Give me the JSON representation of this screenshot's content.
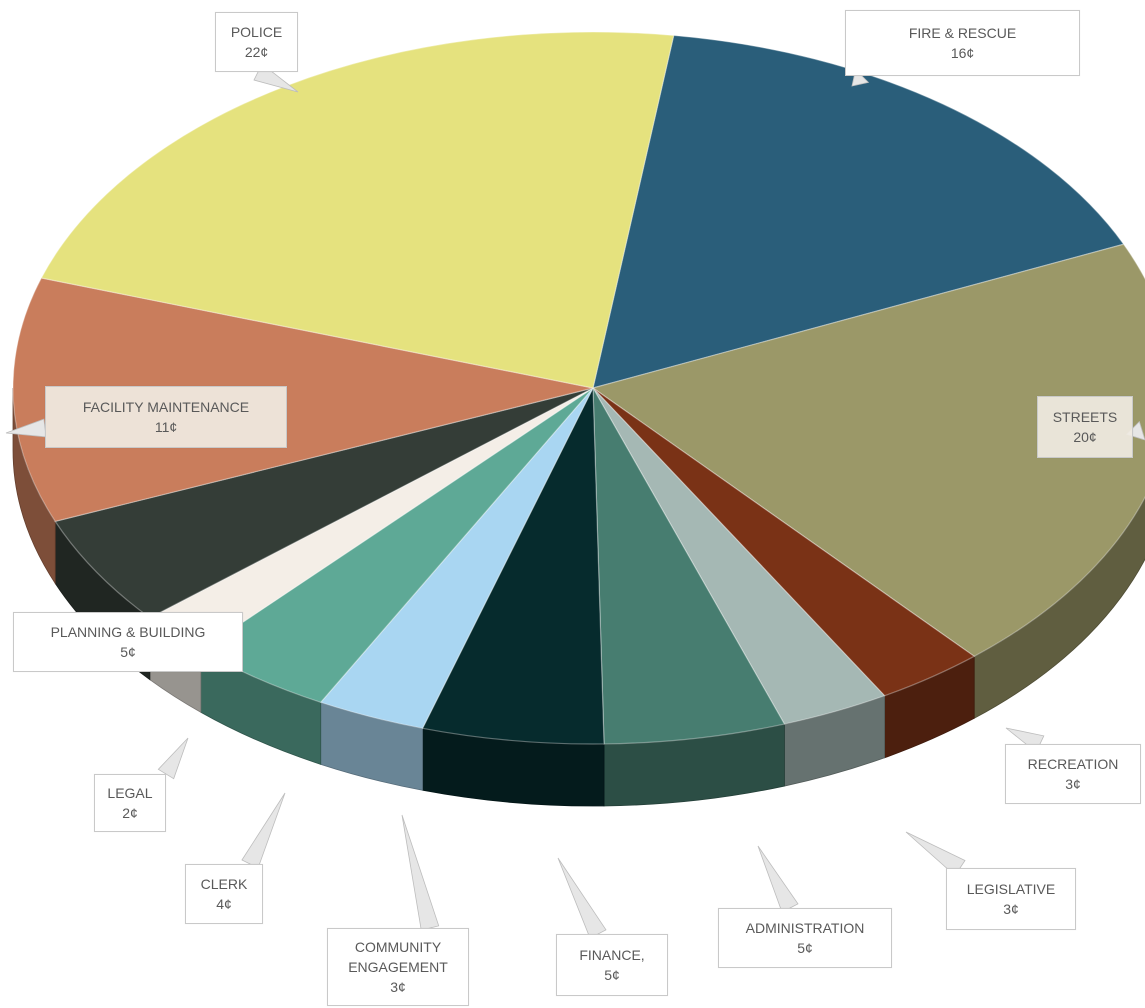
{
  "chart_data": {
    "type": "pie",
    "style": "3d-exploded-tilted",
    "title": "",
    "unit": "¢",
    "slices": [
      {
        "label": "FIRE & RESCUE",
        "value_text": "16¢",
        "value": 16,
        "color": "#2a5e7a"
      },
      {
        "label": "STREETS",
        "value_text": "20¢",
        "value": 20,
        "color": "#9b9868"
      },
      {
        "label": "RECREATION",
        "value_text": "3¢",
        "value": 3,
        "color": "#7a3216"
      },
      {
        "label": "LEGISLATIVE",
        "value_text": "3¢",
        "value": 3,
        "color": "#a5b8b4"
      },
      {
        "label": "ADMINISTRATION",
        "value_text": "5¢",
        "value": 5,
        "color": "#477d70"
      },
      {
        "label": "FINANCE,",
        "value_text": "5¢",
        "value": 5,
        "color": "#062b2d"
      },
      {
        "label": "COMMUNITY\nENGAGEMENT",
        "value_text": "3¢",
        "value": 3,
        "color": "#a9d6f2"
      },
      {
        "label": "CLERK",
        "value_text": "4¢",
        "value": 4,
        "color": "#5ea996"
      },
      {
        "label": "LEGAL",
        "value_text": "2¢",
        "value": 2,
        "color": "#f4eee7"
      },
      {
        "label": "PLANNING & BUILDING",
        "value_text": "5¢",
        "value": 5,
        "color": "#343d37"
      },
      {
        "label": "FACILITY MAINTENANCE",
        "value_text": "11¢",
        "value": 11,
        "color": "#c97d5c"
      },
      {
        "label": "POLICE",
        "value_text": "22¢",
        "value": 22,
        "color": "#e5e27e"
      }
    ],
    "legend": "none",
    "data_labels": "callouts"
  }
}
